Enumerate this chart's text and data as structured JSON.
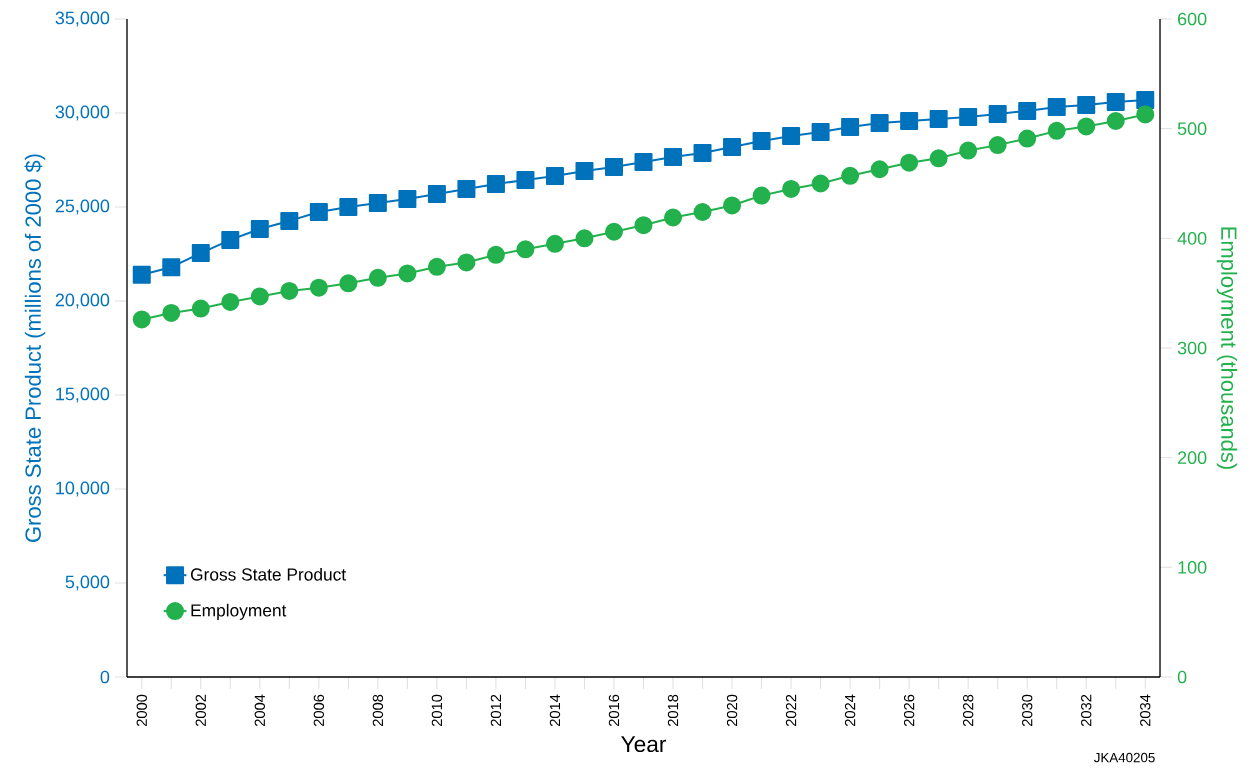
{
  "chart_data": {
    "type": "line",
    "xlabel": "Year",
    "ylabel": "Gross State Product (millions of 2000 $)",
    "y2label": "Employment (thousands)",
    "annotations": [
      "JKA40205"
    ],
    "x": [
      2000,
      2001,
      2002,
      2003,
      2004,
      2005,
      2006,
      2007,
      2008,
      2009,
      2010,
      2011,
      2012,
      2013,
      2014,
      2015,
      2016,
      2017,
      2018,
      2019,
      2020,
      2021,
      2022,
      2023,
      2024,
      2025,
      2026,
      2027,
      2028,
      2029,
      2030,
      2031,
      2032,
      2033,
      2034
    ],
    "series": [
      {
        "name": "Gross State Product",
        "color": "#0072bc",
        "marker": "square",
        "values": [
          21400,
          21800,
          22550,
          23250,
          23830,
          24260,
          24730,
          25000,
          25210,
          25430,
          25690,
          25960,
          26220,
          26440,
          26650,
          26910,
          27130,
          27390,
          27660,
          27870,
          28190,
          28510,
          28780,
          28990,
          29260,
          29470,
          29570,
          29680,
          29790,
          29950,
          30110,
          30320,
          30430,
          30590,
          30690
        ]
      },
      {
        "name": "Employment",
        "color": "#22b14c",
        "marker": "circle",
        "axis": "y2",
        "values": [
          326,
          332,
          336,
          342,
          347,
          352,
          355,
          359,
          364,
          368,
          374,
          378,
          385,
          390,
          395,
          400,
          406,
          412,
          419,
          424,
          430,
          439,
          445,
          450,
          457,
          463,
          469,
          473,
          480,
          485,
          491,
          498,
          502,
          507,
          513
        ]
      }
    ],
    "xlim": [
      1999.5,
      2034.5
    ],
    "xticks": [
      2000,
      {
        "value": 2001,
        "label": null
      },
      2002,
      {
        "value": 2003,
        "label": null
      },
      2004,
      {
        "value": 2005,
        "label": null
      },
      2006,
      {
        "value": 2007,
        "label": null
      },
      2008,
      {
        "value": 2009,
        "label": null
      },
      2010,
      {
        "value": 2011,
        "label": null
      },
      2012,
      {
        "value": 2013,
        "label": null
      },
      2014,
      {
        "value": 2015,
        "label": null
      },
      2016,
      {
        "value": 2017,
        "label": null
      },
      2018,
      {
        "value": 2019,
        "label": null
      },
      2020,
      {
        "value": 2021,
        "label": null
      },
      2022,
      {
        "value": 2023,
        "label": null
      },
      2024,
      {
        "value": 2025,
        "label": null
      },
      2026,
      {
        "value": 2027,
        "label": null
      },
      2028,
      {
        "value": 2029,
        "label": null
      },
      2030,
      {
        "value": 2031,
        "label": null
      },
      2032,
      {
        "value": 2033,
        "label": null
      },
      2034
    ],
    "ylim": [
      0,
      35000
    ],
    "yticks": [
      0,
      {
        "value": 5000,
        "label": "5,000"
      },
      {
        "value": 10000,
        "label": "10,000"
      },
      {
        "value": 15000,
        "label": "15,000"
      },
      {
        "value": 20000,
        "label": "20,000"
      },
      {
        "value": 25000,
        "label": "25,000"
      },
      {
        "value": 30000,
        "label": "30,000"
      },
      {
        "value": 35000,
        "label": "35,000"
      }
    ],
    "y2lim": [
      0,
      600
    ],
    "y2ticks": [
      0,
      100,
      200,
      300,
      400,
      500,
      600
    ],
    "legend": "bottom left",
    "line_style": "solid"
  }
}
